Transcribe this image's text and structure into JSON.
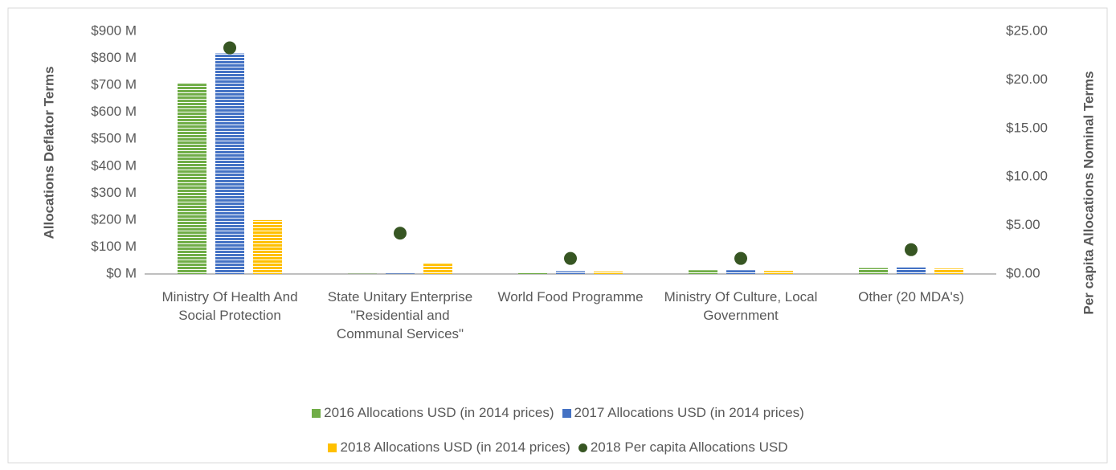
{
  "chart_data": {
    "type": "bar",
    "y_label": "Allocations Deflator Terms",
    "y2_label": "Per capita Allocations Nominal Terms",
    "categories": [
      "Ministry Of Health And Social Protection",
      "State Unitary Enterprise \"Residential and Communal Services\"",
      "World Food Programme",
      "Ministry Of Culture, Local Government",
      "Other (20 MDA's)"
    ],
    "series": [
      {
        "name": "2016 Allocations USD (in 2014 prices)",
        "color": "#70ad47",
        "values": [
          706,
          1,
          6,
          14,
          22
        ]
      },
      {
        "name": "2017 Allocations USD (in 2014 prices)",
        "color": "#4472c4",
        "values": [
          818,
          2,
          10,
          14,
          24
        ]
      },
      {
        "name": "2018 Allocations USD (in 2014 prices)",
        "color": "#ffc000",
        "values": [
          200,
          38,
          9,
          11,
          20
        ]
      },
      {
        "name": "2018 Per capita Allocations USD",
        "color": "#375623",
        "type": "scatter",
        "axis": "y2",
        "values": [
          23.3,
          4.2,
          1.6,
          1.6,
          2.5
        ]
      }
    ],
    "ylim": [
      0,
      900
    ],
    "yticks": [
      {
        "value": 0,
        "label": "$0 M"
      },
      {
        "value": 100,
        "label": "$100 M"
      },
      {
        "value": 200,
        "label": "$200 M"
      },
      {
        "value": 300,
        "label": "$300 M"
      },
      {
        "value": 400,
        "label": "$400 M"
      },
      {
        "value": 500,
        "label": "$500 M"
      },
      {
        "value": 600,
        "label": "$600 M"
      },
      {
        "value": 700,
        "label": "$700 M"
      },
      {
        "value": 800,
        "label": "$800 M"
      },
      {
        "value": 900,
        "label": "$900 M"
      }
    ],
    "y2lim": [
      0,
      25
    ],
    "y2ticks": [
      {
        "value": 0,
        "label": "$0.00"
      },
      {
        "value": 5,
        "label": "$5.00"
      },
      {
        "value": 10,
        "label": "$10.00"
      },
      {
        "value": 15,
        "label": "$15.00"
      },
      {
        "value": 20,
        "label": "$20.00"
      },
      {
        "value": 25,
        "label": "$25.00"
      }
    ],
    "grid": false,
    "legend": "bottom"
  }
}
